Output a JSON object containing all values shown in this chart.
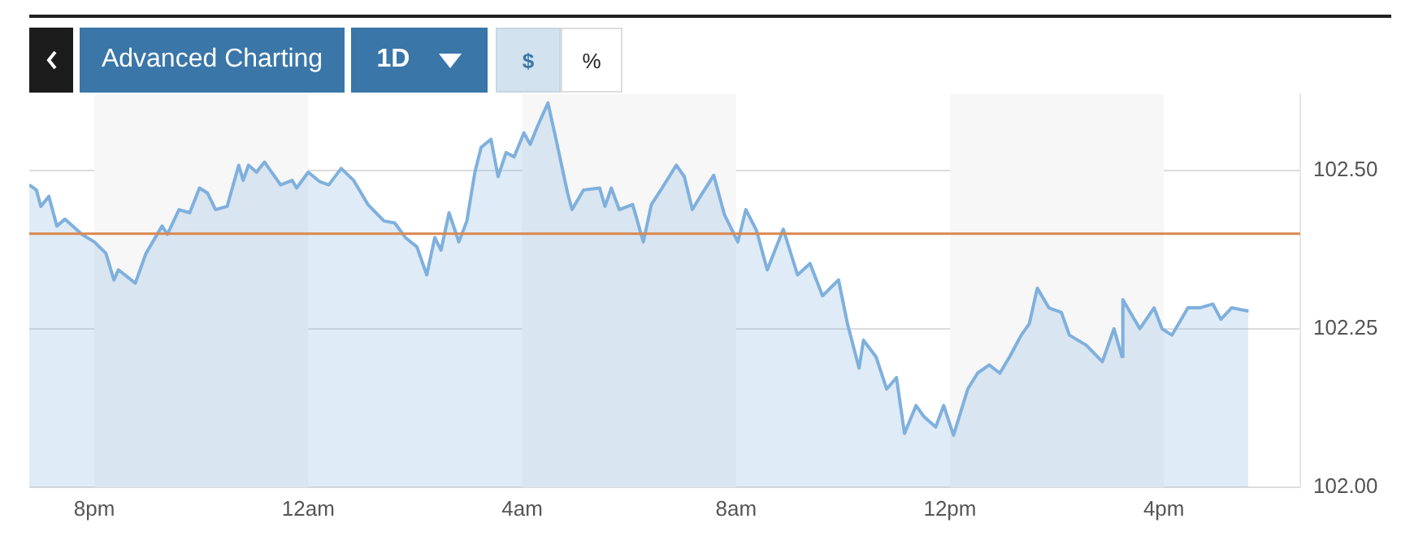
{
  "chart_data": {
    "type": "area",
    "annotations": [
      "Advanced Charting",
      "1D",
      "$",
      "%"
    ],
    "xlim": [
      "--01-01T18:47",
      "--01-02T18:33"
    ],
    "xticks": [
      {
        "value": "--01-01T20:00",
        "label": "8pm"
      },
      {
        "value": "--01-02T00:00",
        "label": "12am"
      },
      {
        "value": "--01-02T04:00",
        "label": "4am"
      },
      {
        "value": "--01-02T08:00",
        "label": "8am"
      },
      {
        "value": "--01-02T12:00",
        "label": "12pm"
      },
      {
        "value": "--01-02T16:00",
        "label": "4pm"
      }
    ],
    "ylim": [
      102.0,
      102.62
    ],
    "yticks": [
      {
        "value": 102.0,
        "label": "102.00"
      },
      {
        "value": 102.25,
        "label": "102.25"
      },
      {
        "value": 102.5,
        "label": "102.50"
      }
    ],
    "grid": "y",
    "ref_lines": [
      {
        "axis": "y",
        "value": 102.4,
        "color": "#d9884f"
      }
    ],
    "bands": [
      {
        "axis": "x",
        "from": "--01-01T20:00",
        "to": "--01-02T00:00",
        "color": "#f7f7f7"
      },
      {
        "axis": "x",
        "from": "--01-02T04:00",
        "to": "--01-02T08:00",
        "color": "#f7f7f7"
      },
      {
        "axis": "x",
        "from": "--01-02T12:00",
        "to": "--01-02T16:00",
        "color": "#f7f7f7"
      }
    ],
    "series": [
      {
        "color": "#7fb0dd",
        "x": [
          "--01-01T18:47",
          "--01-01T18:55",
          "--01-01T19:00",
          "--01-01T19:09",
          "--01-01T19:18",
          "--01-01T19:27",
          "--01-01T19:46",
          "--01-01T20:00",
          "--01-01T20:13",
          "--01-01T20:22",
          "--01-01T20:27",
          "--01-01T20:46",
          "--01-01T20:58",
          "--01-01T21:16",
          "--01-01T21:22",
          "--01-01T21:35",
          "--01-01T21:47",
          "--01-01T21:58",
          "--01-01T22:07",
          "--01-01T22:16",
          "--01-01T22:29",
          "--01-01T22:42",
          "--01-01T22:47",
          "--01-01T22:53",
          "--01-01T23:02",
          "--01-01T23:11",
          "--01-01T23:29",
          "--01-01T23:42",
          "--01-01T23:47",
          "--01-02T00:00",
          "--01-02T00:13",
          "--01-02T00:23",
          "--01-02T00:37",
          "--01-02T00:51",
          "--01-02T01:07",
          "--01-02T01:25",
          "--01-02T01:37",
          "--01-02T01:49",
          "--01-02T02:02",
          "--01-02T02:13",
          "--01-02T02:22",
          "--01-02T02:29",
          "--01-02T02:38",
          "--01-02T02:49",
          "--01-02T02:58",
          "--01-02T03:07",
          "--01-02T03:14",
          "--01-02T03:25",
          "--01-02T03:33",
          "--01-02T03:42",
          "--01-02T03:51",
          "--01-02T04:02",
          "--01-02T04:09",
          "--01-02T04:18",
          "--01-02T04:29",
          "--01-02T04:38",
          "--01-02T04:51",
          "--01-02T04:56",
          "--01-02T05:09",
          "--01-02T05:27",
          "--01-02T05:33",
          "--01-02T05:40",
          "--01-02T05:49",
          "--01-02T06:04",
          "--01-02T06:16",
          "--01-02T06:25",
          "--01-02T06:37",
          "--01-02T06:53",
          "--01-02T07:02",
          "--01-02T07:11",
          "--01-02T07:20",
          "--01-02T07:35",
          "--01-02T07:47",
          "--01-02T08:02",
          "--01-02T08:11",
          "--01-02T08:23",
          "--01-02T08:35",
          "--01-02T08:53",
          "--01-02T09:09",
          "--01-02T09:23",
          "--01-02T09:37",
          "--01-02T09:55",
          "--01-02T10:05",
          "--01-02T10:18",
          "--01-02T10:23",
          "--01-02T10:37",
          "--01-02T10:49",
          "--01-02T11:00",
          "--01-02T11:09",
          "--01-02T11:22",
          "--01-02T11:31",
          "--01-02T11:44",
          "--01-02T11:53",
          "--01-02T12:04",
          "--01-02T12:20",
          "--01-02T12:31",
          "--01-02T12:44",
          "--01-02T12:56",
          "--01-02T13:07",
          "--01-02T13:20",
          "--01-02T13:29",
          "--01-02T13:38",
          "--01-02T13:51",
          "--01-02T14:05",
          "--01-02T14:14",
          "--01-02T14:33",
          "--01-02T14:51",
          "--01-02T15:04",
          "--01-02T15:13",
          "--01-02T15:14",
          "--01-02T15:33",
          "--01-02T15:49",
          "--01-02T15:58",
          "--01-02T16:09",
          "--01-02T16:27",
          "--01-02T16:40",
          "--01-02T16:55",
          "--01-02T17:04",
          "--01-02T17:16",
          "--01-02T17:35"
        ],
        "values": [
          102.477,
          102.469,
          102.443,
          102.459,
          102.412,
          102.423,
          102.399,
          102.387,
          102.369,
          102.327,
          102.343,
          102.322,
          102.369,
          102.412,
          102.399,
          102.438,
          102.433,
          102.472,
          102.464,
          102.438,
          102.443,
          102.508,
          102.484,
          102.508,
          102.497,
          102.513,
          102.477,
          102.484,
          102.472,
          102.497,
          102.482,
          102.477,
          102.503,
          102.484,
          102.446,
          102.42,
          102.417,
          102.394,
          102.379,
          102.335,
          102.394,
          102.374,
          102.433,
          102.387,
          102.42,
          102.497,
          102.536,
          102.549,
          102.49,
          102.528,
          102.521,
          102.559,
          102.541,
          102.572,
          102.606,
          102.549,
          102.464,
          102.438,
          102.469,
          102.472,
          102.443,
          102.472,
          102.438,
          102.446,
          102.387,
          102.446,
          102.472,
          102.508,
          102.49,
          102.438,
          102.459,
          102.492,
          102.43,
          102.387,
          102.438,
          102.405,
          102.343,
          102.407,
          102.335,
          102.353,
          102.302,
          102.327,
          102.258,
          102.188,
          102.232,
          102.206,
          102.155,
          102.173,
          102.085,
          102.129,
          102.111,
          102.095,
          102.129,
          102.082,
          102.155,
          102.18,
          102.193,
          102.18,
          102.206,
          102.24,
          102.258,
          102.314,
          102.283,
          102.276,
          102.24,
          102.224,
          102.198,
          102.25,
          102.206,
          102.296,
          102.25,
          102.283,
          102.25,
          102.24,
          102.283,
          102.283,
          102.289,
          102.265,
          102.283,
          102.278
        ]
      }
    ]
  }
}
